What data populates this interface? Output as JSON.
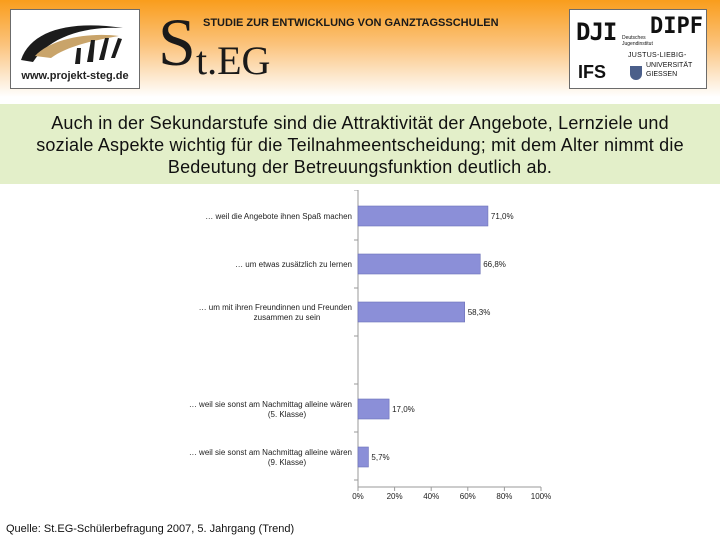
{
  "header": {
    "left_logo": {
      "url_text": "www.projekt-steg.de"
    },
    "steg": {
      "big_letter": "S",
      "rest": "t.EG",
      "subtitle": "STUDIE ZUR ENTWICKLUNG VON GANZTAGSSCHULEN"
    },
    "right_logo": {
      "dji": "DJI",
      "dji_small_1": "Deutsches",
      "dji_small_2": "Jugendinstitut",
      "dipf": "DIPF",
      "ifs": "IFS",
      "uni_1": "JUSTUS-LIEBIG-",
      "uni_2": "UNIVERSITÄT",
      "uni_3": "GIESSEN"
    }
  },
  "title": {
    "line1": "Auch in der Sekundarstufe sind die Attraktivität der Angebote, Lernziele und",
    "line2": "soziale Aspekte wichtig für die Teilnahmeentscheidung; mit dem Alter nimmt die",
    "line3": "Bedeutung der Betreuungsfunktion deutlich ab."
  },
  "chart_data": {
    "type": "bar",
    "orientation": "horizontal",
    "categories": [
      [
        "… weil die Angebote ihnen Spaß machen"
      ],
      [
        "… um etwas zusätzlich zu lernen"
      ],
      [
        "… um mit ihren Freundinnen und Freunden",
        "zusammen zu sein"
      ],
      [
        "… weil sie sonst am Nachmittag alleine wären",
        "(5. Klasse)"
      ],
      [
        "… weil sie sonst am Nachmittag alleine wären",
        "(9. Klasse)"
      ]
    ],
    "values": [
      71.0,
      66.8,
      58.3,
      17.0,
      5.7
    ],
    "value_labels": [
      "71,0%",
      "66,8%",
      "58,3%",
      "17,0%",
      "5,7%"
    ],
    "xlim": [
      0,
      100
    ],
    "xticks": [
      "0%",
      "20%",
      "40%",
      "60%",
      "80%",
      "100%"
    ],
    "bar_color": "#8b8fd8",
    "grid": false
  },
  "footer": {
    "source": "Quelle: St.EG-Schülerbefragung 2007, 5. Jahrgang (Trend)"
  },
  "colors": {
    "header_orange": "#f99d1c",
    "title_band": "#e3efc9",
    "bar": "#8b8fd8"
  }
}
